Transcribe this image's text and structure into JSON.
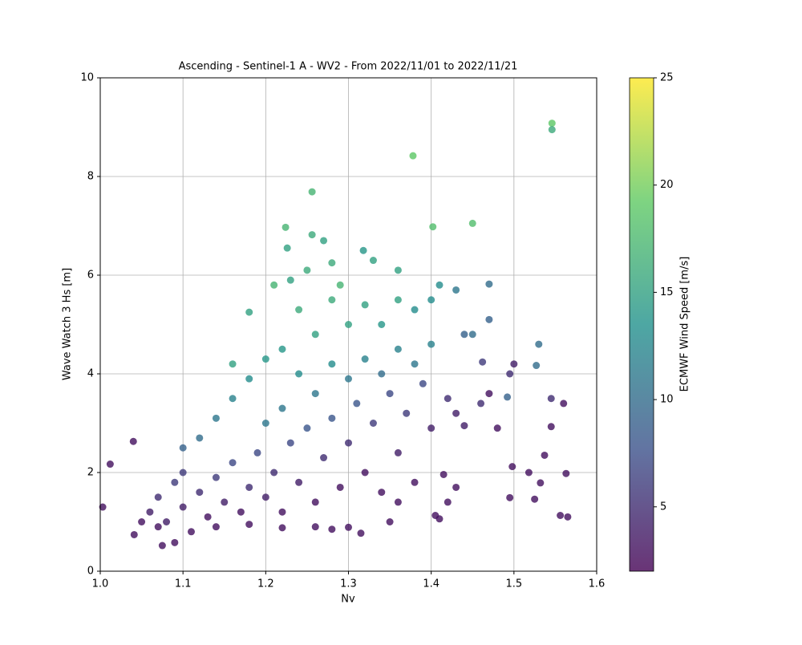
{
  "chart_data": {
    "type": "scatter",
    "title": "Ascending - Sentinel-1 A - WV2 - From 2022/11/01 to 2022/11/21",
    "x_label": "Nv",
    "y_label": "Wave Watch 3 Hs [m]",
    "colorbar_label": "ECMWF Wind Speed [m/s]",
    "colormap": "viridis",
    "grid": true,
    "xlim": [
      1.0,
      1.6
    ],
    "xticks": [
      {
        "value": 1,
        "label": "1.0"
      },
      1.1,
      1.2,
      1.3,
      1.4,
      1.5,
      1.6
    ],
    "ylim": [
      0,
      10
    ],
    "yticks": [
      0,
      2,
      4,
      6,
      8,
      10
    ],
    "clim": [
      2,
      25
    ],
    "cticks": [
      5,
      10,
      15,
      20,
      25
    ],
    "x": [
      1.06,
      1.07,
      1.08,
      1.09,
      1.1,
      1.1,
      1.12,
      1.13,
      1.14,
      1.15,
      1.16,
      1.17,
      1.18,
      1.19,
      1.2,
      1.21,
      1.22,
      1.23,
      1.24,
      1.25,
      1.26,
      1.27,
      1.28,
      1.29,
      1.3,
      1.31,
      1.32,
      1.33,
      1.34,
      1.35,
      1.36,
      1.37,
      1.38,
      1.39,
      1.4,
      1.42,
      1.43,
      1.44,
      1.05,
      1.07,
      1.11,
      1.14,
      1.18,
      1.22,
      1.26,
      1.35,
      1.36,
      1.1,
      1.12,
      1.14,
      1.16,
      1.18,
      1.2,
      1.2,
      1.22,
      1.22,
      1.24,
      1.24,
      1.26,
      1.26,
      1.28,
      1.28,
      1.3,
      1.3,
      1.32,
      1.32,
      1.34,
      1.34,
      1.36,
      1.36,
      1.38,
      1.38,
      1.4,
      1.4,
      1.41,
      1.43,
      1.45,
      1.47,
      1.21,
      1.25,
      1.28,
      1.33,
      1.36,
      1.29,
      1.18,
      1.16,
      1.23,
      1.546,
      1.546,
      1.378,
      1.256,
      1.45,
      1.402,
      1.224,
      1.256,
      1.27,
      1.226,
      1.318,
      1.47,
      1.53,
      1.527,
      1.003,
      1.04,
      1.012,
      1.565,
      1.556,
      1.563,
      1.56,
      1.545,
      1.545,
      1.537,
      1.532,
      1.525,
      1.518,
      1.498,
      1.495,
      1.5,
      1.495,
      1.492,
      1.48,
      1.462,
      1.46,
      1.47,
      1.43,
      1.42,
      1.405,
      1.41,
      1.415,
      1.44,
      1.075,
      1.09,
      1.041,
      1.28,
      1.3,
      1.315
    ],
    "y": [
      1.2,
      1.5,
      1.0,
      1.8,
      1.3,
      2.0,
      1.6,
      1.1,
      1.9,
      1.4,
      2.2,
      1.2,
      1.7,
      2.4,
      1.5,
      2.0,
      1.2,
      2.6,
      1.8,
      2.9,
      1.4,
      2.3,
      3.1,
      1.7,
      2.6,
      3.4,
      2.0,
      3.0,
      1.6,
      3.6,
      2.4,
      3.2,
      1.8,
      3.8,
      2.9,
      3.5,
      3.2,
      4.8,
      1.0,
      0.9,
      0.8,
      0.9,
      0.95,
      0.88,
      0.9,
      1.0,
      1.4,
      2.5,
      2.7,
      3.1,
      3.5,
      3.9,
      4.3,
      3.0,
      4.5,
      3.3,
      4.0,
      5.3,
      4.8,
      3.6,
      5.5,
      4.2,
      5.0,
      3.9,
      5.4,
      4.3,
      5.0,
      4.0,
      5.5,
      4.5,
      4.2,
      5.3,
      4.6,
      5.5,
      5.8,
      5.7,
      4.8,
      5.1,
      5.8,
      6.1,
      6.25,
      6.3,
      6.1,
      5.8,
      5.25,
      4.2,
      5.9,
      9.08,
      8.95,
      8.42,
      7.69,
      7.05,
      6.98,
      6.97,
      6.82,
      6.7,
      6.55,
      6.5,
      5.82,
      4.6,
      4.17,
      1.3,
      2.63,
      2.17,
      1.1,
      1.13,
      1.98,
      3.4,
      3.5,
      2.93,
      2.35,
      1.79,
      1.46,
      2.0,
      2.12,
      1.49,
      4.2,
      4.0,
      3.53,
      2.9,
      4.24,
      3.4,
      3.6,
      1.7,
      1.4,
      1.13,
      1.06,
      1.96,
      2.95,
      0.52,
      0.58,
      0.74,
      0.85,
      0.89,
      0.77
    ],
    "c": [
      4,
      5,
      4,
      6,
      4,
      6,
      5,
      3,
      6,
      4,
      7,
      3,
      5,
      7,
      4,
      5,
      3,
      7,
      4,
      8,
      3,
      5,
      8,
      3,
      5,
      8,
      3,
      6,
      3,
      7,
      4,
      6,
      3,
      7,
      4,
      5,
      4,
      9,
      3,
      3,
      3,
      3,
      3,
      3,
      3,
      3,
      3,
      9,
      10,
      11,
      12,
      13,
      14,
      11,
      14,
      11,
      13,
      16,
      15,
      11,
      16,
      13,
      15,
      11,
      15,
      12,
      14,
      10,
      15,
      12,
      11,
      13,
      12,
      13,
      13,
      11,
      10,
      9,
      17,
      16,
      16,
      15,
      15,
      17,
      15,
      15,
      15,
      19,
      16,
      19,
      17,
      18,
      18,
      17,
      16,
      15,
      15,
      14,
      10,
      10,
      10,
      3,
      3,
      3,
      3,
      3,
      3,
      3,
      5,
      3,
      3,
      3,
      3,
      3,
      3,
      3,
      4,
      5,
      9,
      3,
      6,
      5,
      3,
      3,
      3,
      3,
      3,
      3,
      4,
      3,
      3,
      3,
      3,
      3,
      3
    ]
  }
}
